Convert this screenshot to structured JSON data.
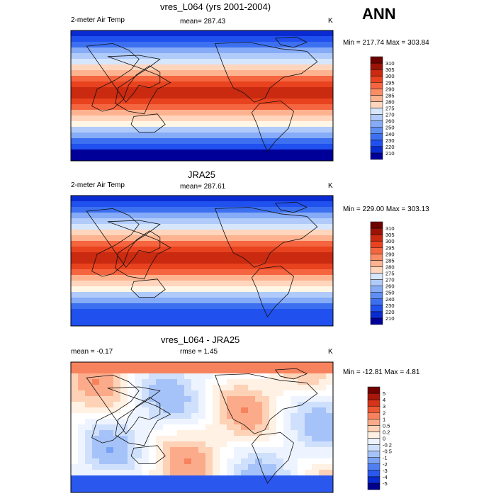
{
  "season": "ANN",
  "colors": {
    "abs_palette": [
      "#000099",
      "#0a2bd1",
      "#2050ee",
      "#3c70f0",
      "#5f8ef4",
      "#86abf7",
      "#b0cbfa",
      "#d6e6fd",
      "#fff6e6",
      "#ffd6bd",
      "#fdb390",
      "#fb8c64",
      "#f5653f",
      "#e8421f",
      "#c92a10",
      "#9b1306",
      "#6e0000"
    ],
    "diff_palette": [
      "#00008c",
      "#0a2bd1",
      "#2a57ee",
      "#4f7ff2",
      "#79a2f6",
      "#a6c3f9",
      "#cfe0fc",
      "#eef4ff",
      "#ffffff",
      "#fff1e3",
      "#fed2b6",
      "#fcab8a",
      "#f7835e",
      "#ec5834",
      "#d6341a",
      "#a8170a",
      "#720000"
    ]
  },
  "panels": [
    {
      "title": "vres_L064 (yrs 2001-2004)",
      "left_label": "2-meter Air Temp",
      "center_label": "mean= 287.43",
      "units": "K",
      "minmax": "Min = 217.74 Max = 303.84"
    },
    {
      "title": "JRA25",
      "left_label": "2-meter Air Temp",
      "center_label": "mean= 287.61",
      "units": "K",
      "minmax": "Min = 229.00 Max = 303.13"
    },
    {
      "title": "vres_L064 - JRA25",
      "left_label": "mean =  -0.17",
      "center_label": "rmse =   1.45",
      "units": "K",
      "minmax": "Min = -12.81 Max =   4.81"
    }
  ],
  "chart_data": [
    {
      "type": "heatmap",
      "title": "vres_L064 (yrs 2001-2004)",
      "variable": "2-meter Air Temp",
      "units": "K",
      "mean": 287.43,
      "min": 217.74,
      "max": 303.84,
      "colorbar_levels": [
        "210",
        "220",
        "230",
        "240",
        "250",
        "260",
        "270",
        "275",
        "280",
        "285",
        "290",
        "295",
        "300",
        "305",
        "310"
      ]
    },
    {
      "type": "heatmap",
      "title": "JRA25",
      "variable": "2-meter Air Temp",
      "units": "K",
      "mean": 287.61,
      "min": 229.0,
      "max": 303.13,
      "colorbar_levels": [
        "210",
        "220",
        "230",
        "240",
        "250",
        "260",
        "270",
        "275",
        "280",
        "285",
        "290",
        "295",
        "300",
        "305",
        "310"
      ]
    },
    {
      "type": "heatmap",
      "title": "vres_L064 - JRA25",
      "units": "K",
      "mean": -0.17,
      "rmse": 1.45,
      "min": -12.81,
      "max": 4.81,
      "colorbar_levels": [
        "-5",
        "-4",
        "-3",
        "-2",
        "-1",
        "-0.5",
        "-0.2",
        "0",
        "0.2",
        "0.5",
        "1",
        "2",
        "3",
        "4",
        "5"
      ]
    }
  ]
}
